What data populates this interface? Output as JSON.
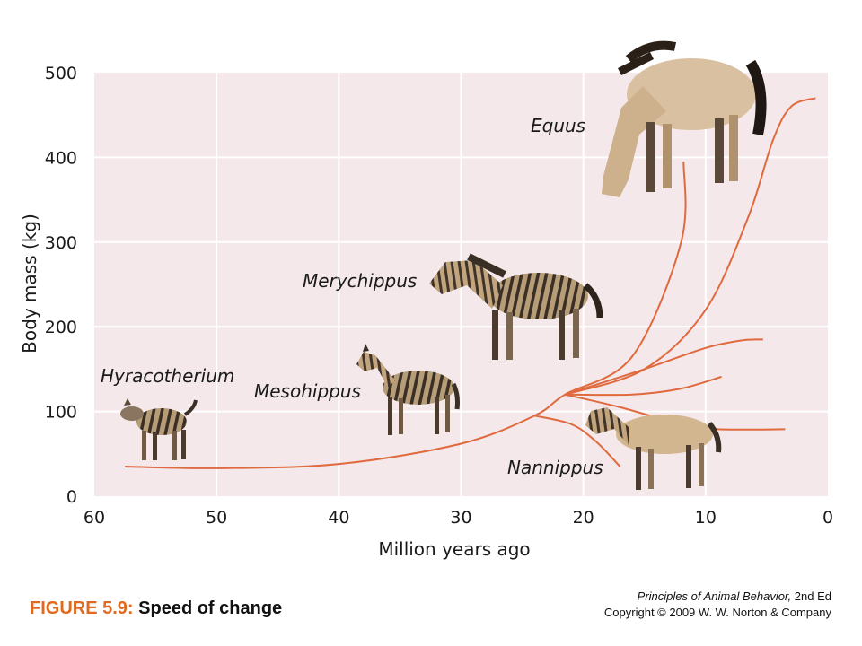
{
  "chart_data": {
    "type": "line",
    "xlabel": "Million years ago",
    "ylabel": "Body mass (kg)",
    "xlim": [
      60,
      0
    ],
    "ylim": [
      0,
      500
    ],
    "x_ticks": [
      60,
      50,
      40,
      30,
      20,
      10,
      0
    ],
    "y_ticks": [
      0,
      100,
      200,
      300,
      400,
      500
    ],
    "grid": true,
    "colors": {
      "background": "#f4e8ea",
      "grid": "#ffffff",
      "line": "#e06a3e"
    },
    "lineages": [
      {
        "points": [
          [
            57.5,
            35
          ],
          [
            50,
            33
          ],
          [
            40,
            38
          ],
          [
            30,
            62
          ],
          [
            24,
            95
          ],
          [
            21.5,
            120
          ],
          [
            16,
            165
          ],
          [
            12,
            300
          ],
          [
            11.8,
            395
          ]
        ]
      },
      {
        "points": [
          [
            21.5,
            120
          ],
          [
            15,
            150
          ],
          [
            10,
            220
          ],
          [
            6.5,
            330
          ],
          [
            4.5,
            420
          ],
          [
            3,
            460
          ],
          [
            1,
            470
          ]
        ]
      },
      {
        "points": [
          [
            21.5,
            120
          ],
          [
            15,
            150
          ],
          [
            10,
            175
          ],
          [
            7,
            184
          ],
          [
            5.3,
            185
          ]
        ]
      },
      {
        "points": [
          [
            21.5,
            120
          ],
          [
            16,
            120
          ],
          [
            12,
            127
          ],
          [
            8.7,
            141
          ]
        ]
      },
      {
        "points": [
          [
            21.5,
            120
          ],
          [
            17,
            105
          ],
          [
            12,
            85
          ],
          [
            9,
            79
          ],
          [
            3.5,
            79
          ]
        ]
      },
      {
        "points": [
          [
            24,
            95
          ],
          [
            21,
            85
          ],
          [
            19,
            65
          ],
          [
            17,
            35
          ]
        ]
      }
    ],
    "taxa": [
      {
        "name": "Hyracotherium",
        "icon": "hyracotherium-icon"
      },
      {
        "name": "Mesohippus",
        "icon": "mesohippus-icon"
      },
      {
        "name": "Merychippus",
        "icon": "merychippus-icon"
      },
      {
        "name": "Equus",
        "icon": "equus-icon"
      },
      {
        "name": "Nannippus",
        "icon": "nannippus-icon"
      }
    ]
  },
  "caption": {
    "figure": "FIGURE 5.9:",
    "title": "Speed of change"
  },
  "credit": {
    "book": "Principles of Animal Behavior,",
    "edition": "2nd Ed",
    "copyright": "Copyright © 2009 W. W. Norton & Company"
  }
}
